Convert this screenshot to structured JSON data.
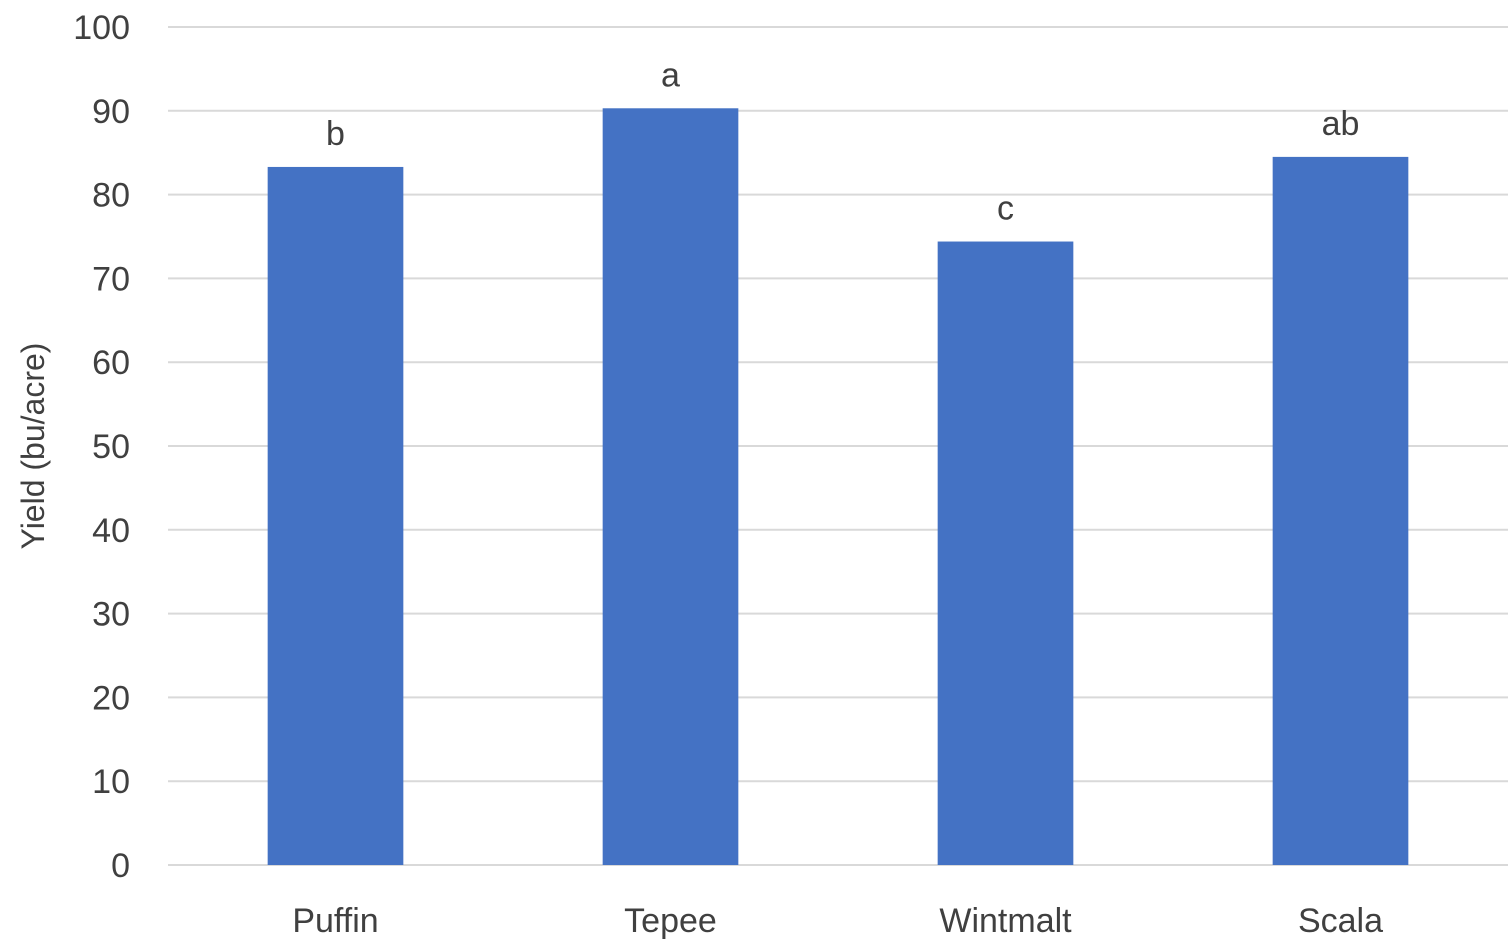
{
  "chart_data": {
    "type": "bar",
    "categories": [
      "Puffin",
      "Tepee",
      "Wintmalt",
      "Scala"
    ],
    "values": [
      83.3,
      90.3,
      74.4,
      84.5
    ],
    "data_labels": [
      "b",
      "a",
      "c",
      "ab"
    ],
    "title": "",
    "xlabel": "",
    "ylabel": "Yield (bu/acre)",
    "ylim": [
      0,
      100
    ],
    "yticks": [
      0,
      10,
      20,
      30,
      40,
      50,
      60,
      70,
      80,
      90,
      100
    ],
    "grid": true,
    "legend": "none",
    "colors": {
      "bar": "#4472c4",
      "grid": "#d9d9d9",
      "text": "#404040"
    }
  }
}
